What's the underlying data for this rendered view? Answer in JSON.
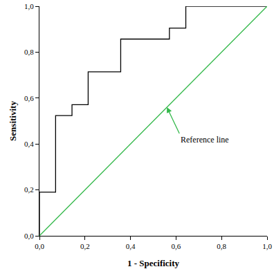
{
  "chart_data": {
    "type": "line",
    "x_label": "1 - Specificity",
    "y_label": "Sensitivity",
    "xlim": [
      0,
      1
    ],
    "ylim": [
      0,
      1
    ],
    "xticks": [
      {
        "value": 0,
        "label": "0,0"
      },
      {
        "value": 0.2,
        "label": "0,2"
      },
      {
        "value": 0.4,
        "label": "0,4"
      },
      {
        "value": 0.6,
        "label": "0,6"
      },
      {
        "value": 0.8,
        "label": "0,8"
      },
      {
        "value": 1,
        "label": "1,0"
      }
    ],
    "yticks": [
      {
        "value": 0,
        "label": "0,0"
      },
      {
        "value": 0.2,
        "label": "0,2"
      },
      {
        "value": 0.4,
        "label": "0,4"
      },
      {
        "value": 0.6,
        "label": "0,6"
      },
      {
        "value": 0.8,
        "label": "0,8"
      },
      {
        "value": 1,
        "label": "1,0"
      }
    ],
    "grid": false,
    "series": [
      {
        "x": [
          0,
          0,
          0.071,
          0.071,
          0.143,
          0.143,
          0.214,
          0.214,
          0.357,
          0.357,
          0.571,
          0.571,
          0.643,
          0.643,
          1
        ],
        "values": [
          0,
          0.19,
          0.19,
          0.524,
          0.524,
          0.571,
          0.571,
          0.714,
          0.714,
          0.857,
          0.857,
          0.905,
          0.905,
          1,
          1
        ],
        "color": "#000000",
        "line_style": "solid"
      },
      {
        "x": [
          0,
          1
        ],
        "values": [
          0,
          1
        ],
        "color": "#33b84a",
        "line_style": "solid"
      }
    ],
    "annotations": [
      {
        "text": "Reference line",
        "x": 0.56,
        "y": 0.56,
        "color": "#33b84a"
      }
    ]
  }
}
